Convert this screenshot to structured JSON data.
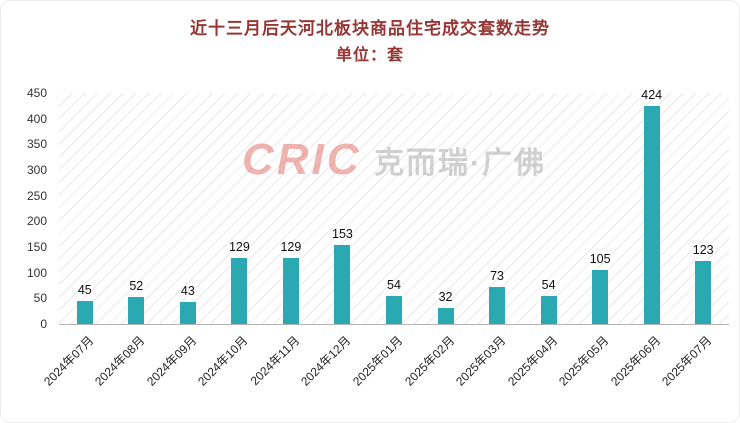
{
  "title": "近十三月后天河北板块商品住宅成交套数走势",
  "subtitle": "单位：套",
  "watermark": {
    "logo": "CRIC",
    "text": "克而瑞·广佛"
  },
  "colors": {
    "bar": "#2BA9B2",
    "title": "#953735",
    "axis_text": "#333333",
    "hatch_line": "#e9e9e9"
  },
  "chart_data": {
    "type": "bar",
    "title": "近十三月后天河北板块商品住宅成交套数走势",
    "subtitle": "单位：套",
    "categories": [
      "2024年07月",
      "2024年08月",
      "2024年09月",
      "2024年10月",
      "2024年11月",
      "2024年12月",
      "2025年01月",
      "2025年02月",
      "2025年03月",
      "2025年04月",
      "2025年05月",
      "2025年06月",
      "2025年07月"
    ],
    "values": [
      45,
      52,
      43,
      129,
      129,
      153,
      54,
      32,
      73,
      54,
      105,
      424,
      123
    ],
    "xlabel": "",
    "ylabel": "",
    "ylim": [
      0,
      450
    ],
    "ytick_step": 50,
    "grid": "diagonal-hatch",
    "legend": "none",
    "data_labels": true
  }
}
